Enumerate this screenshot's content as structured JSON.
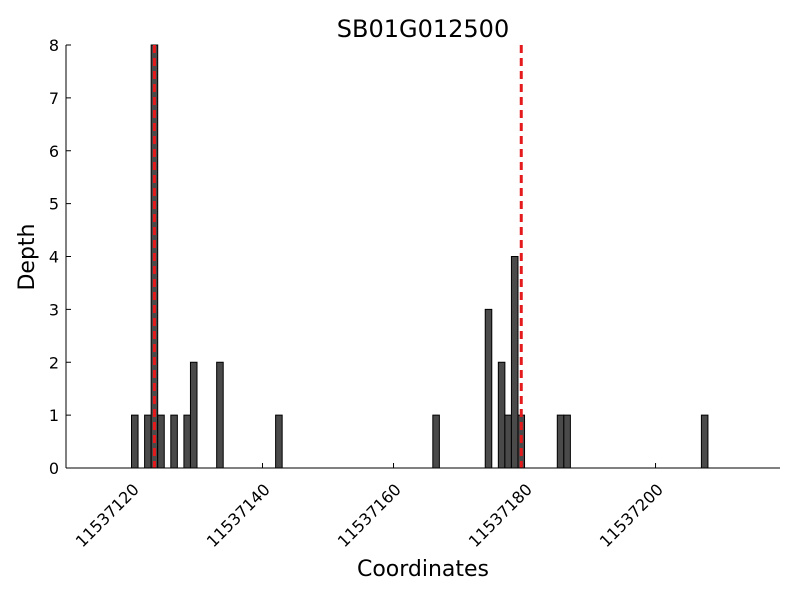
{
  "chart_data": {
    "type": "bar",
    "title": "SB01G012500",
    "xlabel": "Coordinates",
    "ylabel": "Depth",
    "xlim": [
      11537110,
      11537219
    ],
    "ylim": [
      0,
      8
    ],
    "xticks": [
      11537120,
      11537140,
      11537160,
      11537180,
      11537200
    ],
    "yticks": [
      0,
      1,
      2,
      3,
      4,
      5,
      6,
      7,
      8
    ],
    "bar_color": "#4a4a4a",
    "marker_color": "#e41a1c",
    "points": [
      {
        "x": 11537120,
        "y": 1
      },
      {
        "x": 11537122,
        "y": 1
      },
      {
        "x": 11537123,
        "y": 8
      },
      {
        "x": 11537124,
        "y": 1
      },
      {
        "x": 11537126,
        "y": 1
      },
      {
        "x": 11537128,
        "y": 1
      },
      {
        "x": 11537129,
        "y": 2
      },
      {
        "x": 11537133,
        "y": 2
      },
      {
        "x": 11537142,
        "y": 1
      },
      {
        "x": 11537166,
        "y": 1
      },
      {
        "x": 11537174,
        "y": 3
      },
      {
        "x": 11537176,
        "y": 2
      },
      {
        "x": 11537177,
        "y": 1
      },
      {
        "x": 11537178,
        "y": 4
      },
      {
        "x": 11537179,
        "y": 1
      },
      {
        "x": 11537185,
        "y": 1
      },
      {
        "x": 11537186,
        "y": 1
      },
      {
        "x": 11537207,
        "y": 1
      }
    ],
    "markers": [
      11537123,
      11537179
    ]
  }
}
